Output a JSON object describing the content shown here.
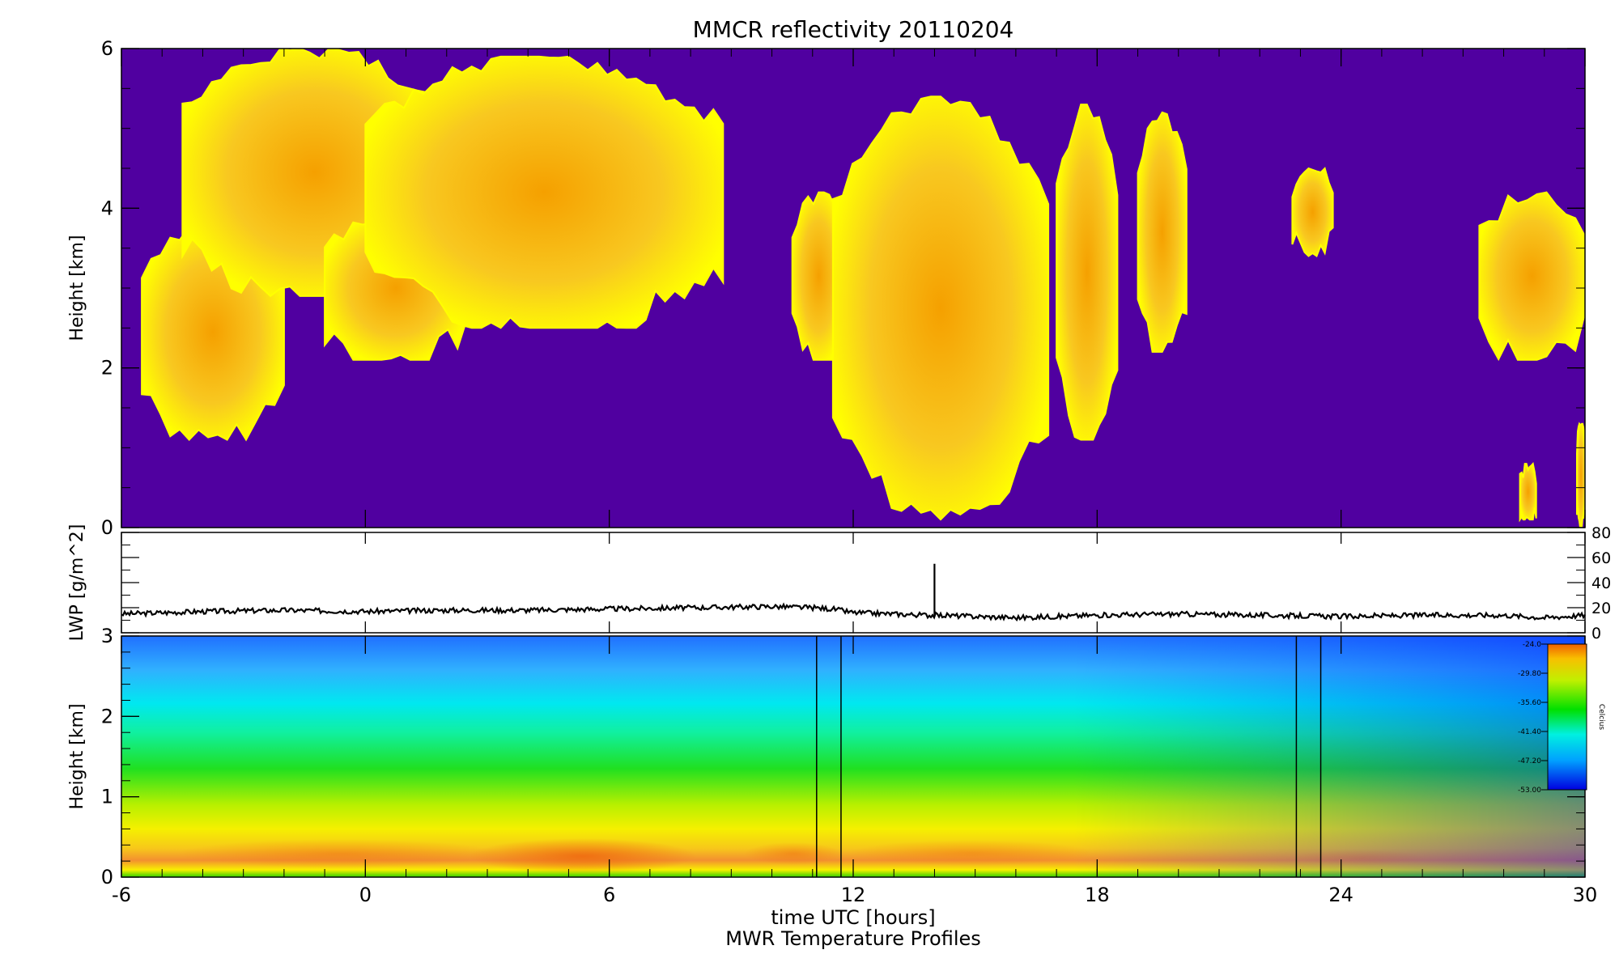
{
  "colors": {
    "background_echo": "#5000a0",
    "cloud_edge": "#ffff00",
    "cloud_core": "#f5a000",
    "lwp_line": "#000000",
    "temp_hot": "#f07000",
    "temp_cold": "#0000ff"
  },
  "chart_data": [
    {
      "type": "heatmap",
      "title": "MMCR reflectivity     20110204",
      "ylabel": "Height [km]",
      "xlim": [
        -6,
        30
      ],
      "ylim": [
        0,
        6
      ],
      "yticks": [
        "0",
        "2",
        "4",
        "6"
      ],
      "cloud_regions": [
        {
          "x_start": -5.5,
          "x_end": -2.0,
          "base_km": 1.1,
          "top_km": 3.8
        },
        {
          "x_start": -4.5,
          "x_end": 2.0,
          "base_km": 2.9,
          "top_km": 6.0
        },
        {
          "x_start": -1.0,
          "x_end": 2.5,
          "base_km": 2.1,
          "top_km": 3.9
        },
        {
          "x_start": 0.0,
          "x_end": 8.8,
          "base_km": 2.5,
          "top_km": 5.9
        },
        {
          "x_start": 10.5,
          "x_end": 11.8,
          "base_km": 2.1,
          "top_km": 4.2
        },
        {
          "x_start": 11.5,
          "x_end": 16.8,
          "base_km": 0.1,
          "top_km": 5.4
        },
        {
          "x_start": 17.0,
          "x_end": 18.5,
          "base_km": 1.1,
          "top_km": 5.3
        },
        {
          "x_start": 19.0,
          "x_end": 20.2,
          "base_km": 2.2,
          "top_km": 5.2
        },
        {
          "x_start": 22.8,
          "x_end": 23.8,
          "base_km": 3.4,
          "top_km": 4.5
        },
        {
          "x_start": 27.4,
          "x_end": 30.0,
          "base_km": 2.1,
          "top_km": 4.2
        },
        {
          "x_start": 29.8,
          "x_end": 30.0,
          "base_km": 0.0,
          "top_km": 1.3
        },
        {
          "x_start": 28.4,
          "x_end": 28.8,
          "base_km": 0.1,
          "top_km": 0.8
        }
      ]
    },
    {
      "type": "line",
      "ylabel": "LWP [g/m^2]",
      "xlim": [
        -6,
        30
      ],
      "ylim": [
        0,
        80
      ],
      "yticks_right": [
        "0",
        "20",
        "40",
        "60",
        "80"
      ],
      "series": [
        {
          "x": [
            -6,
            -4,
            -2,
            0,
            2,
            4,
            6,
            8,
            10,
            11,
            11.5,
            12,
            13,
            13.9,
            14,
            14.1,
            15,
            16,
            18,
            20,
            22,
            24,
            26,
            28,
            29,
            30
          ],
          "values": [
            15,
            17,
            18,
            17,
            18,
            18,
            19,
            20,
            21,
            20,
            19,
            16,
            15,
            14,
            55,
            14,
            13,
            12,
            14,
            15,
            14,
            13,
            14,
            14,
            12,
            14
          ]
        }
      ]
    },
    {
      "type": "heatmap",
      "title": "MWR Temperature Profiles",
      "ylabel": "Height [km]",
      "xlabel": "time UTC [hours]",
      "xlim": [
        -6,
        30
      ],
      "ylim": [
        0,
        3
      ],
      "xticks": [
        "-6",
        "0",
        "6",
        "12",
        "18",
        "24",
        "30"
      ],
      "yticks": [
        "0",
        "1",
        "2",
        "3"
      ],
      "markers_x": [
        11.1,
        11.7,
        22.9,
        23.5
      ],
      "colorbar": {
        "label": "Celcius",
        "ticks": [
          "-24.0",
          "-29.80",
          "-35.60",
          "-41.40",
          "-47.20",
          "-53.00"
        ]
      },
      "profile": [
        {
          "height_km": 0.0,
          "temp_c": -33
        },
        {
          "height_km": 0.2,
          "temp_c": -25
        },
        {
          "height_km": 0.5,
          "temp_c": -29
        },
        {
          "height_km": 1.0,
          "temp_c": -32
        },
        {
          "height_km": 1.5,
          "temp_c": -36
        },
        {
          "height_km": 2.0,
          "temp_c": -40
        },
        {
          "height_km": 2.5,
          "temp_c": -44
        },
        {
          "height_km": 3.0,
          "temp_c": -49
        }
      ]
    }
  ]
}
